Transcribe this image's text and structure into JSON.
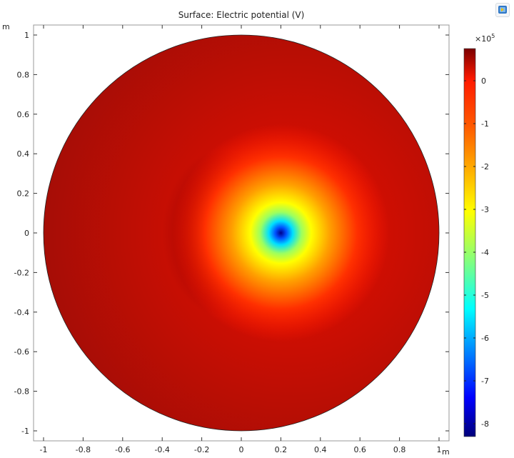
{
  "chart_data": {
    "type": "heatmap",
    "title": "Surface: Electric potential (V)",
    "x_unit": "m",
    "y_unit": "m",
    "xlim": [
      -1.05,
      1.05
    ],
    "ylim": [
      -1.05,
      1.05
    ],
    "x_ticks": [
      -1,
      -0.8,
      -0.6,
      -0.4,
      -0.2,
      0,
      0.2,
      0.4,
      0.6,
      0.8,
      1
    ],
    "x_tick_labels": [
      "-1",
      "-0.8",
      "-0.6",
      "-0.4",
      "-0.2",
      "0",
      "0.2",
      "0.4",
      "0.6",
      "0.8",
      "1"
    ],
    "y_ticks": [
      1,
      0.8,
      0.6,
      0.4,
      0.2,
      0,
      -0.2,
      -0.4,
      -0.6,
      -0.8,
      -1
    ],
    "y_tick_labels": [
      "1",
      "0.8",
      "0.6",
      "0.4",
      "0.2",
      "0",
      "-0.2",
      "-0.4",
      "-0.6",
      "-0.8",
      "-1"
    ],
    "domain": {
      "shape": "circle",
      "center": [
        0,
        0
      ],
      "radius": 1
    },
    "features": [
      {
        "kind": "minimum",
        "x": 0.2,
        "y": 0,
        "value_e5": -8.2
      },
      {
        "kind": "maximum",
        "x": -0.1,
        "y": 0,
        "value_e5": 0.6
      }
    ],
    "colorbar": {
      "scale_label": "×10",
      "scale_exponent": "5",
      "range": [
        -8.3,
        0.75
      ],
      "ticks": [
        0,
        -1,
        -2,
        -3,
        -4,
        -5,
        -6,
        -7,
        -8
      ],
      "tick_labels": [
        "0",
        "-1",
        "-2",
        "-3",
        "-4",
        "-5",
        "-6",
        "-7",
        "-8"
      ],
      "colormap": "rainbow",
      "stops": [
        "#7a0000",
        "#ff1a00",
        "#ffa500",
        "#ffff00",
        "#00ffff",
        "#0000a0"
      ]
    }
  },
  "toolbar": {
    "icon": "display-icon"
  }
}
